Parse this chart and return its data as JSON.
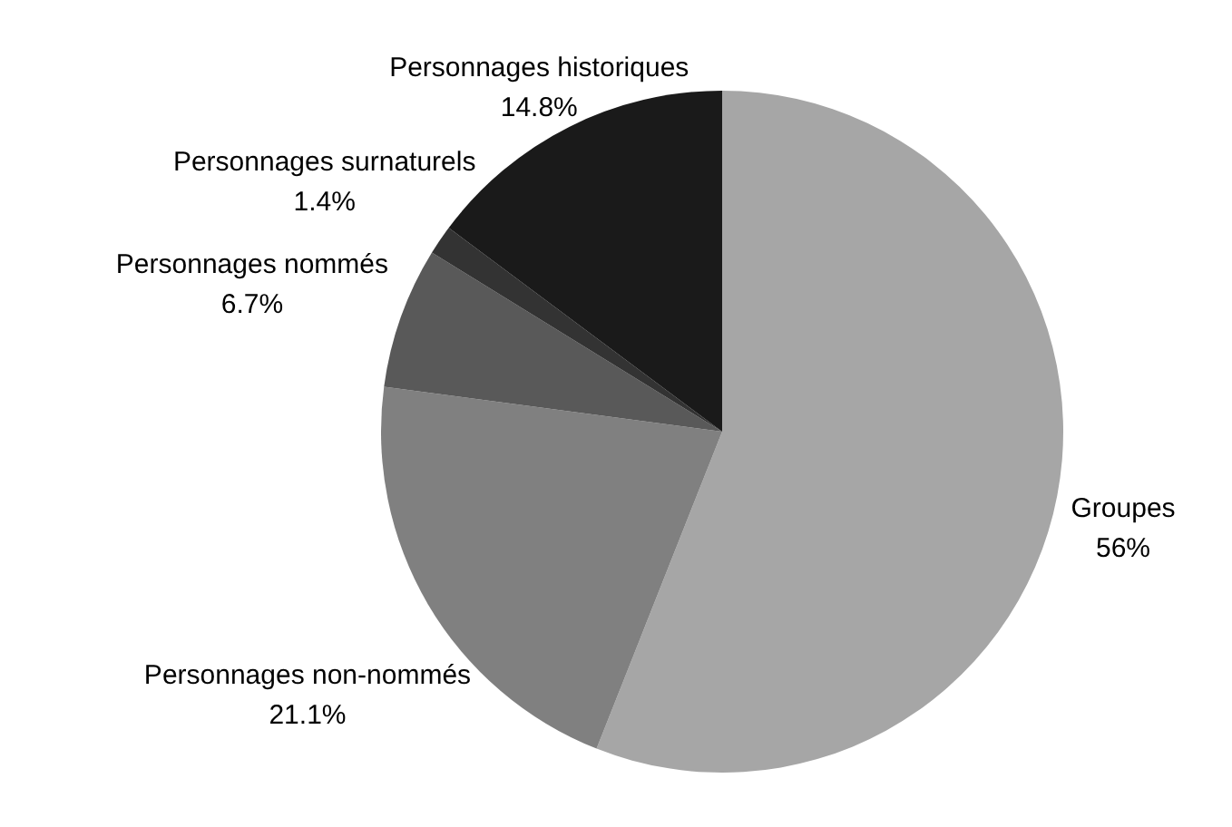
{
  "chart_data": {
    "type": "pie",
    "categories": [
      "Groupes",
      "Personnages non-nommés",
      "Personnages nommés",
      "Personnages surnaturels",
      "Personnages historiques"
    ],
    "values": [
      56,
      21.1,
      6.7,
      1.4,
      14.8
    ],
    "value_labels": [
      "56%",
      "21.1%",
      "6.7%",
      "1.4%",
      "14.8%"
    ],
    "colors": [
      "#a6a6a6",
      "#808080",
      "#595959",
      "#333333",
      "#1a1a1a"
    ],
    "legend": false
  }
}
